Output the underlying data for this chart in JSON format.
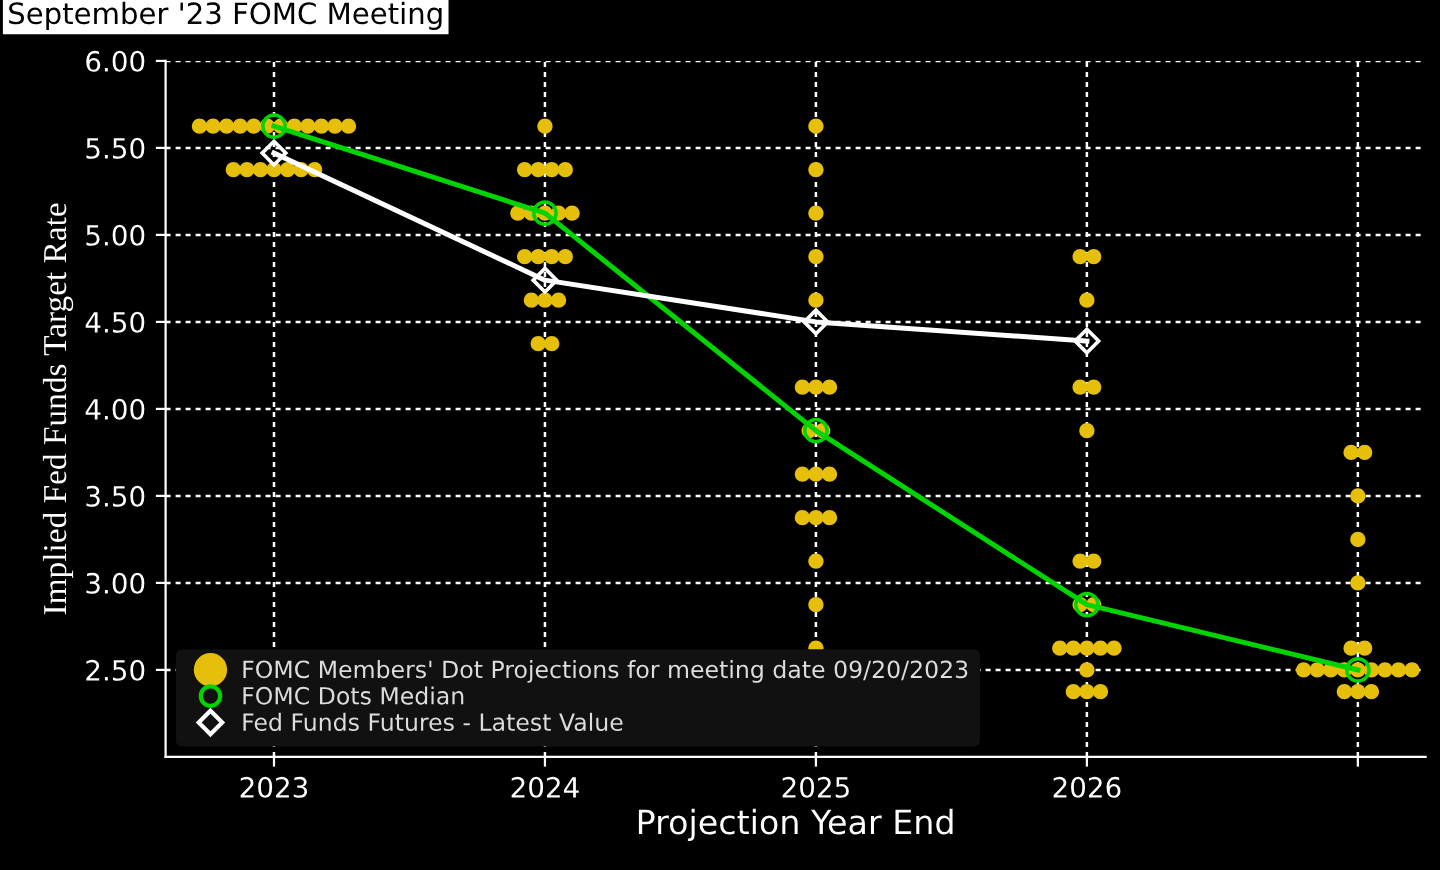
{
  "chart_data": {
    "type": "line",
    "title": "September '23 FOMC Meeting",
    "xlabel": "Projection Year End",
    "ylabel": "Implied Fed Funds Target Rate",
    "xlim": [
      2022.6,
      2027.25
    ],
    "xticks": [
      2023,
      2024,
      2025,
      2026,
      {
        "value": 2027,
        "label": null
      }
    ],
    "ylim": [
      2.0,
      6.0
    ],
    "yticks": [
      {
        "value": 2.5,
        "label": "2.50"
      },
      {
        "value": 3.0,
        "label": "3.00"
      },
      {
        "value": 3.5,
        "label": "3.50"
      },
      {
        "value": 4.0,
        "label": "4.00"
      },
      {
        "value": 4.5,
        "label": "4.50"
      },
      {
        "value": 5.0,
        "label": "5.00"
      },
      {
        "value": 5.5,
        "label": "5.50"
      },
      {
        "value": 6.0,
        "label": "6.00"
      }
    ],
    "grid": true,
    "legend": "bottom left",
    "line_style": "solid",
    "series": [
      {
        "name": "FOMC Members' Dot Projections for meeting date 09/20/2023",
        "type": "scatter",
        "marker": "circle",
        "color": "#e6bf0a",
        "x": [
          2022.725,
          2022.775,
          2022.825,
          2022.875,
          2022.925,
          2022.975,
          2023.025,
          2023.075,
          2023.125,
          2023.175,
          2023.225,
          2023.275,
          2022.85,
          2022.9,
          2022.95,
          2023,
          2023.05,
          2023.1,
          2023.15,
          2024,
          2023.925,
          2023.975,
          2024.025,
          2024.075,
          2023.9,
          2023.95,
          2024,
          2024.05,
          2024.1,
          2023.925,
          2023.975,
          2024.025,
          2024.075,
          2023.95,
          2024,
          2024.05,
          2023.975,
          2024.025,
          2025,
          2025,
          2025,
          2025,
          2025,
          2024.95,
          2025,
          2025.05,
          2024.975,
          2025.025,
          2024.95,
          2025,
          2025.05,
          2024.95,
          2025,
          2025.05,
          2025,
          2025,
          2025,
          2025.975,
          2026.025,
          2026,
          2025.975,
          2026.025,
          2026,
          2025.975,
          2026.025,
          2025.975,
          2026.025,
          2025.9,
          2025.95,
          2026,
          2026.05,
          2026.1,
          2026,
          2025.95,
          2026,
          2026.05,
          2026.975,
          2027.025,
          2027,
          2027,
          2027,
          2026.975,
          2027.025,
          2026.8,
          2026.85,
          2026.9,
          2026.95,
          2027,
          2027.05,
          2027.1,
          2027.15,
          2027.2,
          2026.95,
          2027,
          2027.05
        ],
        "values": [
          5.625,
          5.625,
          5.625,
          5.625,
          5.625,
          5.625,
          5.625,
          5.625,
          5.625,
          5.625,
          5.625,
          5.625,
          5.375,
          5.375,
          5.375,
          5.375,
          5.375,
          5.375,
          5.375,
          5.625,
          5.375,
          5.375,
          5.375,
          5.375,
          5.125,
          5.125,
          5.125,
          5.125,
          5.125,
          4.875,
          4.875,
          4.875,
          4.875,
          4.625,
          4.625,
          4.625,
          4.375,
          4.375,
          5.625,
          5.375,
          5.125,
          4.875,
          4.625,
          4.125,
          4.125,
          4.125,
          3.875,
          3.875,
          3.625,
          3.625,
          3.625,
          3.375,
          3.375,
          3.375,
          3.125,
          2.875,
          2.625,
          4.875,
          4.875,
          4.625,
          4.125,
          4.125,
          3.875,
          3.125,
          3.125,
          2.875,
          2.875,
          2.625,
          2.625,
          2.625,
          2.625,
          2.625,
          2.5,
          2.375,
          2.375,
          2.375,
          3.75,
          3.75,
          3.5,
          3.25,
          3.0,
          2.625,
          2.625,
          2.5,
          2.5,
          2.5,
          2.5,
          2.5,
          2.5,
          2.5,
          2.5,
          2.5,
          2.375,
          2.375,
          2.375
        ]
      },
      {
        "name": "FOMC Dots Median",
        "marker": "circle",
        "color": "#00d400",
        "x": [
          2023,
          2024,
          2025,
          2026,
          2027
        ],
        "values": [
          5.625,
          5.125,
          3.875,
          2.875,
          2.5
        ]
      },
      {
        "name": "Fed Funds Futures - Latest Value",
        "marker": "diamond",
        "color": "#ffffff",
        "x": [
          2023,
          2024,
          2025,
          2026
        ],
        "values": [
          5.47,
          4.74,
          4.5,
          4.39
        ]
      }
    ]
  }
}
